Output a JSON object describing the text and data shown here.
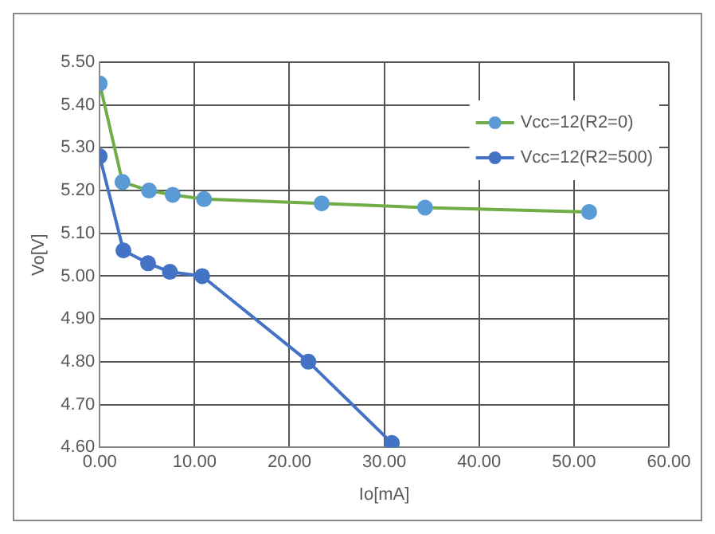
{
  "chart_data": {
    "type": "line",
    "xlabel": "Io[mA]",
    "ylabel": "Vo[V]",
    "xlim": [
      0,
      60
    ],
    "xticks": [
      {
        "value": 0,
        "label": "0.00"
      },
      {
        "value": 10,
        "label": "10.00"
      },
      {
        "value": 20,
        "label": "20.00"
      },
      {
        "value": 30,
        "label": "30.00"
      },
      {
        "value": 40,
        "label": "40.00"
      },
      {
        "value": 50,
        "label": "50.00"
      },
      {
        "value": 60,
        "label": "60.00"
      }
    ],
    "ylim": [
      4.6,
      5.5
    ],
    "yticks": [
      {
        "value": 4.6,
        "label": "4.60"
      },
      {
        "value": 4.7,
        "label": "4.70"
      },
      {
        "value": 4.8,
        "label": "4.80"
      },
      {
        "value": 4.9,
        "label": "4.90"
      },
      {
        "value": 5.0,
        "label": "5.00"
      },
      {
        "value": 5.1,
        "label": "5.10"
      },
      {
        "value": 5.2,
        "label": "5.20"
      },
      {
        "value": 5.3,
        "label": "5.30"
      },
      {
        "value": 5.4,
        "label": "5.40"
      },
      {
        "value": 5.5,
        "label": "5.50"
      }
    ],
    "grid": true,
    "legend": "top right",
    "marker": "circle",
    "line_style": "solid",
    "series": [
      {
        "name": "Vcc=12(R2=0)",
        "color": "#70ad47",
        "colors": [
          "#5b9bd5",
          "#5b9bd5",
          "#5b9bd5",
          "#5b9bd5",
          "#5b9bd5",
          "#5b9bd5",
          "#5b9bd5",
          "#5b9bd5"
        ],
        "x": [
          0,
          2.4,
          5.2,
          7.7,
          11.0,
          23.4,
          34.3,
          51.6
        ],
        "values": [
          5.45,
          5.22,
          5.2,
          5.19,
          5.18,
          5.17,
          5.16,
          5.15
        ]
      },
      {
        "name": "Vcc=12(R2=500)",
        "color": "#4472c4",
        "x": [
          0,
          2.5,
          5.1,
          7.4,
          10.8,
          22.0,
          30.8
        ],
        "values": [
          5.28,
          5.06,
          5.03,
          5.01,
          5.0,
          4.8,
          4.61
        ]
      }
    ]
  }
}
